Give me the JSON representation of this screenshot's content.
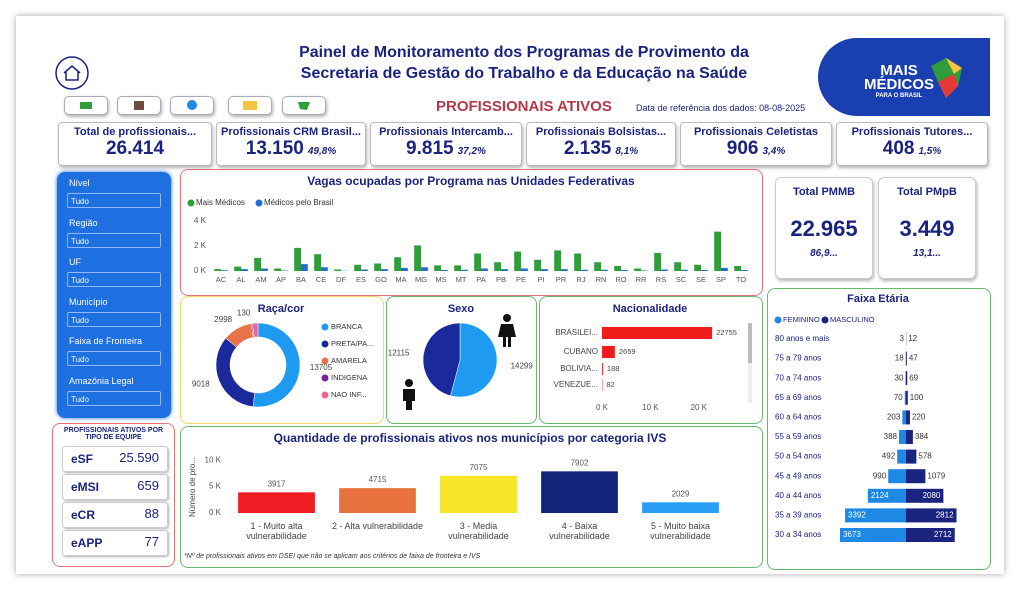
{
  "header": {
    "title_line1": "Painel de Monitoramento dos Programas de Provimento da",
    "title_line2": "Secretaria de Gestão do Trabalho e da Educação na Saúde",
    "subtitle": "PROFISSIONAIS ATIVOS",
    "reference": "Data de referência dos dados: 08-08-2025",
    "logo_line1": "MAIS",
    "logo_line2": "MÉDICOS",
    "logo_line3": "PARA O BRASIL"
  },
  "kpis": [
    {
      "label": "Total de profissionais...",
      "value": "26.414"
    },
    {
      "label": "Profissionais CRM Brasil...",
      "value": "13.150",
      "share": "49,8%"
    },
    {
      "label": "Profissionais Intercamb...",
      "value": "9.815",
      "share": "37,2%"
    },
    {
      "label": "Profissionais Bolsistas...",
      "value": "2.135",
      "share": "8,1%"
    },
    {
      "label": "Profissionais Celetistas",
      "value": "906",
      "share": "3,4%"
    },
    {
      "label": "Profissionais Tutores...",
      "value": "408",
      "share": "1,5%"
    }
  ],
  "filters": [
    {
      "label": "Nível",
      "value": "Tudo"
    },
    {
      "label": "Região",
      "value": "Tudo"
    },
    {
      "label": "UF",
      "value": "Tudo"
    },
    {
      "label": "Município",
      "value": "Tudo"
    },
    {
      "label": "Faixa de Fronteira",
      "value": "Tudo"
    },
    {
      "label": "Amazônia Legal",
      "value": "Tudo"
    }
  ],
  "equipe": {
    "title": "PROFISSIONAIS ATIVOS POR TIPO DE EQUIPE",
    "rows": [
      {
        "label": "eSF",
        "value": "25.590"
      },
      {
        "label": "eMSI",
        "value": "659"
      },
      {
        "label": "eCR",
        "value": "88"
      },
      {
        "label": "eAPP",
        "value": "77"
      }
    ]
  },
  "totals": [
    {
      "label": "Total PMMB",
      "value": "22.965",
      "share": "86,9..."
    },
    {
      "label": "Total PMpB",
      "value": "3.449",
      "share": "13,1..."
    }
  ],
  "footnote": "*Nº de profissionais ativos em DSEI que não se aplicam aos critérios de faixa de fronteira e IVS",
  "chart_data": [
    {
      "type": "bar",
      "title": "Vagas ocupadas por Programa nas Unidades Federativas",
      "categories": [
        "AC",
        "AL",
        "AM",
        "AP",
        "BA",
        "CE",
        "DF",
        "ES",
        "GO",
        "MA",
        "MG",
        "MS",
        "MT",
        "PA",
        "PB",
        "PE",
        "PI",
        "PR",
        "RJ",
        "RN",
        "RO",
        "RR",
        "RS",
        "SC",
        "SE",
        "SP",
        "TO"
      ],
      "series": [
        {
          "name": "Mais Médicos",
          "color": "#2e9d3a",
          "values": [
            150,
            350,
            1050,
            200,
            1850,
            1350,
            120,
            500,
            600,
            1100,
            2050,
            450,
            450,
            1400,
            700,
            1550,
            900,
            1650,
            1400,
            700,
            400,
            200,
            1450,
            700,
            500,
            3150,
            400
          ]
        },
        {
          "name": "Médicos pelo Brasil",
          "color": "#1f6fd1",
          "values": [
            60,
            150,
            200,
            40,
            550,
            300,
            20,
            120,
            150,
            250,
            300,
            80,
            100,
            200,
            150,
            200,
            150,
            150,
            100,
            100,
            80,
            40,
            120,
            100,
            80,
            250,
            80
          ]
        }
      ],
      "ylim": [
        0,
        4400
      ],
      "yticks": [
        {
          "value": 0,
          "label": "0 K"
        },
        {
          "value": 2000,
          "label": "2 K"
        },
        {
          "value": 4000,
          "label": "4 K"
        }
      ],
      "grid": false
    },
    {
      "type": "donut",
      "title": "Raça/cor",
      "categories": [
        "BRANCA",
        "PRETA/PA...",
        "AMARELA",
        "INDIGENA",
        "NAO INF..."
      ],
      "values": [
        13705,
        9018,
        2998,
        130,
        563
      ],
      "value_labels": [
        "13705",
        "9018",
        "2998",
        "130",
        null
      ],
      "colors": [
        "#1e9bf0",
        "#1a2a9c",
        "#e8734a",
        "#7b1fa2",
        "#f06292"
      ]
    },
    {
      "type": "pie",
      "title": "Sexo",
      "values": [
        14299,
        12115
      ],
      "colors": [
        "#1e9bf0",
        "#1a2a9c"
      ]
    },
    {
      "type": "hbar",
      "title": "Nacionalidade",
      "categories": [
        "BRASILEI...",
        "CUBANO",
        "BOLIVIA...",
        "VENEZUE..."
      ],
      "values": [
        22755,
        2659,
        188,
        82
      ],
      "color": "#f01c1c",
      "xlim": [
        0,
        25000
      ],
      "xticks": [
        {
          "value": 0,
          "label": "0 K"
        },
        {
          "value": 10000,
          "label": "10 K"
        },
        {
          "value": 20000,
          "label": "20 K"
        }
      ]
    },
    {
      "type": "bar",
      "title": "Quantidade de profissionais ativos nos municípios por categoria IVS",
      "y_label": "Número de pro...",
      "categories": [
        "1 - Muito alta vulnerabilidade",
        "2 - Alta vulnerabilidade",
        "3 - Media vulnerabilidade",
        "4 - Baixa vulnerabilidade",
        "5 - Muito baixa vulnerabilidade"
      ],
      "values": [
        3917,
        4715,
        7075,
        7902,
        2029
      ],
      "colors": [
        "#f01c24",
        "#e8733f",
        "#f5e62a",
        "#14237a",
        "#2a9df4"
      ],
      "ylim": [
        0,
        11000
      ],
      "yticks": [
        {
          "value": 0,
          "label": "0 K"
        },
        {
          "value": 5000,
          "label": "5 K"
        },
        {
          "value": 10000,
          "label": "10 K"
        }
      ]
    },
    {
      "type": "pyramid",
      "title": "Faixa Etária",
      "categories": [
        "80 anos e mais",
        "75 a 79 anos",
        "70 a 74 anos",
        "65 a 69 anos",
        "60 a 64 anos",
        "55 a 59 anos",
        "50 a 54 anos",
        "45 a 49 anos",
        "40 a 44 anos",
        "35 a 39 anos",
        "30 a 34 anos"
      ],
      "series": [
        {
          "name": "FEMININO",
          "color": "#1e88e5",
          "values": [
            3,
            18,
            30,
            70,
            203,
            388,
            492,
            990,
            2124,
            3392,
            3673
          ]
        },
        {
          "name": "MASCULINO",
          "color": "#1a237e",
          "values": [
            12,
            47,
            69,
            100,
            220,
            384,
            578,
            1079,
            2080,
            2812,
            2712
          ]
        }
      ]
    }
  ]
}
